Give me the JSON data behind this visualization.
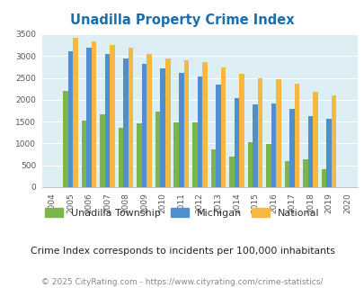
{
  "title": "Unadilla Property Crime Index",
  "years": [
    2004,
    2005,
    2006,
    2007,
    2008,
    2009,
    2010,
    2011,
    2012,
    2013,
    2014,
    2015,
    2016,
    2017,
    2018,
    2019,
    2020
  ],
  "unadilla": [
    0,
    2200,
    1530,
    1670,
    1360,
    1460,
    1720,
    1490,
    1490,
    860,
    690,
    1020,
    980,
    590,
    640,
    400,
    0
  ],
  "michigan": [
    0,
    3100,
    3200,
    3050,
    2940,
    2820,
    2720,
    2610,
    2540,
    2340,
    2040,
    1890,
    1910,
    1790,
    1630,
    1560,
    0
  ],
  "national": [
    0,
    3410,
    3330,
    3250,
    3190,
    3050,
    2950,
    2910,
    2870,
    2730,
    2590,
    2490,
    2460,
    2360,
    2180,
    2100,
    0
  ],
  "unadilla_color": "#7ab648",
  "michigan_color": "#4f8fcd",
  "national_color": "#f5b942",
  "bg_color": "#ddeef5",
  "ylim": [
    0,
    3500
  ],
  "yticks": [
    0,
    500,
    1000,
    1500,
    2000,
    2500,
    3000,
    3500
  ],
  "legend_labels": [
    "Unadilla Township",
    "Michigan",
    "National"
  ],
  "subtitle": "Crime Index corresponds to incidents per 100,000 inhabitants",
  "copyright": "© 2025 CityRating.com - https://www.cityrating.com/crime-statistics/",
  "title_color": "#1a6faf",
  "subtitle_color": "#222222",
  "copyright_color": "#888888"
}
